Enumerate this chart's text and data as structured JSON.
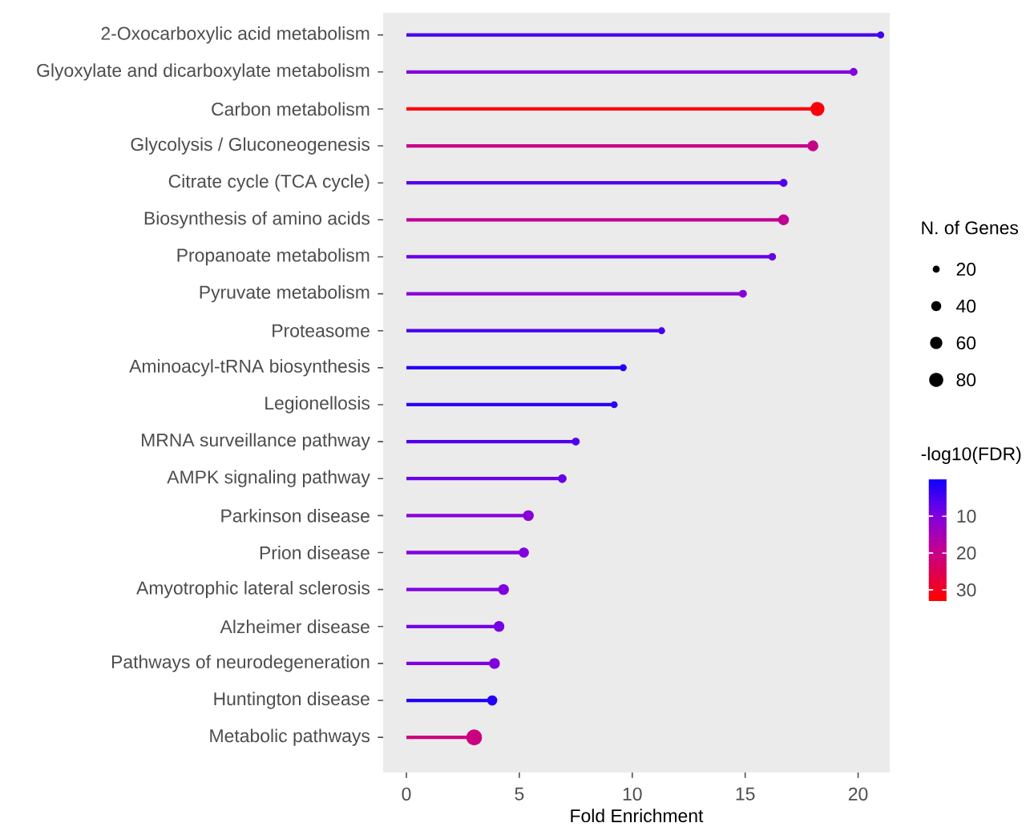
{
  "chart_data": {
    "type": "lollipop",
    "orientation": "horizontal",
    "xlabel": "Fold Enrichment",
    "categories": [
      "2-Oxocarboxylic acid metabolism",
      "Glyoxylate and dicarboxylate metabolism",
      "Carbon metabolism",
      "Glycolysis / Gluconeogenesis",
      "Citrate cycle (TCA cycle)",
      "Biosynthesis of amino acids",
      "Propanoate metabolism",
      "Pyruvate metabolism",
      "Proteasome",
      "Aminoacyl-tRNA biosynthesis",
      "Legionellosis",
      "MRNA surveillance pathway",
      "AMPK signaling pathway",
      "Parkinson disease",
      "Prion disease",
      "Amyotrophic lateral sclerosis",
      "Alzheimer disease",
      "Pathways of neurodegeneration",
      "Huntington disease",
      "Metabolic pathways"
    ],
    "values": [
      21.0,
      19.8,
      18.2,
      18.0,
      16.7,
      16.7,
      16.2,
      14.9,
      11.3,
      9.6,
      9.2,
      7.5,
      6.9,
      5.4,
      5.2,
      4.3,
      4.1,
      3.9,
      3.8,
      3.0
    ],
    "sizes": [
      15,
      20,
      70,
      40,
      20,
      40,
      18,
      20,
      15,
      15,
      15,
      20,
      25,
      40,
      35,
      40,
      40,
      40,
      35,
      90
    ],
    "size_legend": [
      20,
      40,
      60,
      80
    ],
    "legend_title": "N. of Genes",
    "cvalues": [
      5,
      10,
      32,
      20,
      6,
      19,
      8,
      11,
      5,
      2,
      3,
      6,
      8,
      11,
      10,
      10,
      9,
      10,
      2,
      21
    ],
    "clabel": "-log10(FDR)",
    "clim": [
      0,
      33
    ],
    "cticks": [
      10,
      20,
      30
    ],
    "xlim": [
      -1.03,
      21.4
    ],
    "xticks": [
      0,
      5,
      10,
      15,
      20
    ],
    "marker": "circle"
  }
}
